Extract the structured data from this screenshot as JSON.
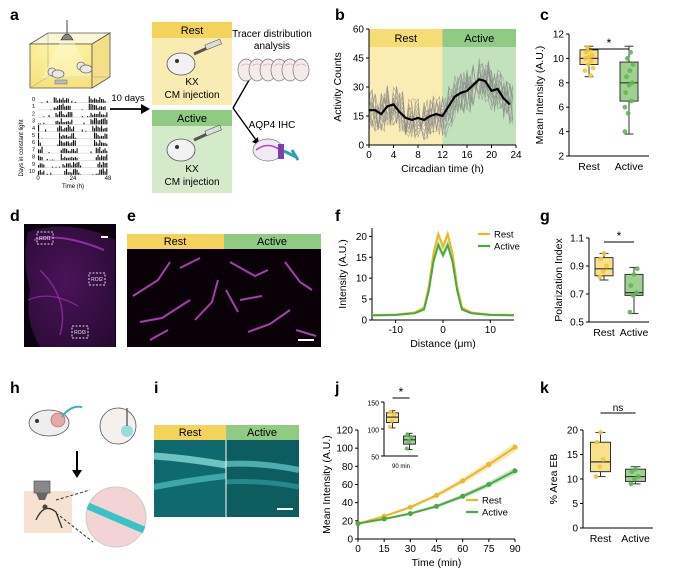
{
  "panels": {
    "a": "a",
    "b": "b",
    "c": "c",
    "d": "d",
    "e": "e",
    "f": "f",
    "g": "g",
    "h": "h",
    "i": "i",
    "j": "j",
    "k": "k"
  },
  "panel_a": {
    "arrow_label": "10 days",
    "rest_label": "Rest",
    "active_label": "Active",
    "kx": "KX",
    "cm_injection": "CM injection",
    "tracer_line1": "Tracer distribution",
    "tracer_line2": "analysis",
    "aqp4": "AQP4 IHC",
    "actogram_ylabel": "Days in constant light",
    "actogram_xlabel": "Time (h)",
    "actogram_days": [
      "0",
      "1",
      "2",
      "3",
      "4",
      "5",
      "6",
      "7",
      "8",
      "9",
      "10"
    ],
    "actogram_xticks": [
      "0",
      "24",
      "48"
    ]
  },
  "panel_d": {
    "roi1": "ROI1",
    "roi2": "ROI2",
    "roi3": "ROI3"
  },
  "panel_e": {
    "rest_label": "Rest",
    "active_label": "Active"
  },
  "panel_i": {
    "rest_label": "Rest",
    "active_label": "Active"
  },
  "chart_data": [
    {
      "id": "b",
      "type": "line",
      "title": "",
      "xlabel": "Circadian time  (h)",
      "ylabel": "Activity Counts",
      "xlim": [
        0,
        24
      ],
      "ylim": [
        0,
        60
      ],
      "xticks": [
        0,
        4,
        8,
        12,
        16,
        20,
        24
      ],
      "yticks": [
        0,
        15,
        30,
        45,
        60
      ],
      "shaded_regions": [
        {
          "label": "Rest",
          "x": [
            0,
            12
          ],
          "color": "#f6dc74"
        },
        {
          "label": "Active",
          "x": [
            12,
            24
          ],
          "color": "#8fcb83"
        }
      ],
      "series": [
        {
          "name": "mean",
          "x": [
            0,
            1,
            2,
            3,
            4,
            5,
            6,
            7,
            8,
            9,
            10,
            11,
            12,
            13,
            14,
            15,
            16,
            17,
            18,
            19,
            20,
            21,
            22,
            23
          ],
          "y": [
            18,
            18,
            16,
            20,
            21,
            17,
            14,
            13,
            14,
            13,
            15,
            16,
            15,
            20,
            25,
            27,
            28,
            31,
            34,
            33,
            28,
            29,
            24,
            21
          ]
        }
      ],
      "individual_trace_count": 12
    },
    {
      "id": "c",
      "type": "box",
      "title": "",
      "xlabel": "",
      "ylabel": "Mean Intensity (A.U.)",
      "ylim": [
        2,
        12
      ],
      "yticks": [
        2,
        4,
        6,
        8,
        10,
        12
      ],
      "categories": [
        "Rest",
        "Active"
      ],
      "boxes": [
        {
          "q1": 9.5,
          "median": 10.0,
          "q3": 10.7,
          "whisker_low": 8.5,
          "whisker_high": 11.0
        },
        {
          "q1": 6.5,
          "median": 8.0,
          "q3": 9.7,
          "whisker_low": 3.8,
          "whisker_high": 11.0
        }
      ],
      "points": [
        [
          9.0,
          9.5,
          9.8,
          10.0,
          10.1,
          10.3,
          10.5,
          10.7,
          9.2,
          10.9,
          8.6
        ],
        [
          4.0,
          5.5,
          6.5,
          7.2,
          7.8,
          8.0,
          8.5,
          9.0,
          9.5,
          10.0,
          10.5,
          6.0
        ]
      ],
      "significance": "*"
    },
    {
      "id": "f",
      "type": "line",
      "title": "",
      "xlabel": "Distance (μm)",
      "ylabel": "Intensity (A.U.)",
      "xlim": [
        -15,
        15
      ],
      "ylim": [
        0,
        22
      ],
      "xticks": [
        -10,
        0,
        10
      ],
      "yticks": [
        0,
        5,
        10,
        15,
        20
      ],
      "legend": "top-right",
      "series": [
        {
          "name": "Rest",
          "color": "#e8b825",
          "x": [
            -15,
            -10,
            -6,
            -4,
            -3,
            -2,
            -1,
            0,
            1,
            2,
            3,
            4,
            6,
            10,
            15
          ],
          "y": [
            1.2,
            1.3,
            1.8,
            3,
            8,
            16,
            20.5,
            17.5,
            20.5,
            16,
            8,
            3,
            1.8,
            1.3,
            1.2
          ]
        },
        {
          "name": "Active",
          "color": "#4aa840",
          "x": [
            -15,
            -10,
            -6,
            -4,
            -3,
            -2,
            -1,
            0,
            1,
            2,
            3,
            4,
            6,
            10,
            15
          ],
          "y": [
            1.1,
            1.2,
            1.6,
            2.5,
            7,
            14,
            18,
            15.5,
            18,
            14,
            7,
            2.5,
            1.6,
            1.2,
            1.1
          ]
        }
      ]
    },
    {
      "id": "g",
      "type": "box",
      "title": "",
      "xlabel": "",
      "ylabel": "Polarization Index",
      "ylim": [
        0.5,
        1.1
      ],
      "yticks": [
        0.5,
        0.7,
        0.9,
        1.1
      ],
      "categories": [
        "Rest",
        "Active"
      ],
      "boxes": [
        {
          "q1": 0.83,
          "median": 0.88,
          "q3": 0.96,
          "whisker_low": 0.8,
          "whisker_high": 0.99
        },
        {
          "q1": 0.69,
          "median": 0.71,
          "q3": 0.84,
          "whisker_low": 0.56,
          "whisker_high": 0.89
        }
      ],
      "points": [
        [
          0.82,
          0.86,
          0.9,
          0.95,
          0.99
        ],
        [
          0.57,
          0.69,
          0.71,
          0.76,
          0.84,
          0.88
        ]
      ],
      "significance": "*"
    },
    {
      "id": "j",
      "type": "line",
      "title": "",
      "xlabel": "Time (min)",
      "ylabel": "Mean Intensity (A.U.)",
      "xlim": [
        0,
        90
      ],
      "ylim": [
        0,
        120
      ],
      "xticks": [
        0,
        15,
        30,
        45,
        60,
        75,
        90
      ],
      "yticks": [
        0,
        20,
        40,
        60,
        80,
        100,
        120
      ],
      "legend": "bottom-right",
      "series": [
        {
          "name": "Rest",
          "color": "#e8b825",
          "x": [
            0,
            15,
            30,
            45,
            60,
            75,
            90
          ],
          "y": [
            17,
            25,
            35,
            48,
            64,
            82,
            101
          ]
        },
        {
          "name": "Active",
          "color": "#4aa840",
          "x": [
            0,
            15,
            30,
            45,
            60,
            75,
            90
          ],
          "y": [
            17,
            22,
            28,
            36,
            47,
            60,
            75
          ]
        }
      ],
      "inset": {
        "type": "box",
        "xlabel": "90 min",
        "ylim": [
          50,
          150
        ],
        "yticks": [
          50,
          100,
          150
        ],
        "categories": [
          "Rest",
          "Active"
        ],
        "boxes": [
          {
            "q1": 112,
            "median": 122,
            "q3": 130,
            "whisker_low": 102,
            "whisker_high": 134
          },
          {
            "q1": 72,
            "median": 80,
            "q3": 87,
            "whisker_low": 62,
            "whisker_high": 92
          }
        ],
        "points": [
          [
            104,
            115,
            128,
            132
          ],
          [
            64,
            78,
            85,
            90
          ]
        ],
        "significance": "*"
      }
    },
    {
      "id": "k",
      "type": "box",
      "title": "",
      "xlabel": "",
      "ylabel": "% Area EB",
      "ylim": [
        0,
        20
      ],
      "yticks": [
        0,
        5,
        10,
        15,
        20
      ],
      "categories": [
        "Rest",
        "Active"
      ],
      "boxes": [
        {
          "q1": 11.5,
          "median": 13.5,
          "q3": 17.5,
          "whisker_low": 10.5,
          "whisker_high": 19.5
        },
        {
          "q1": 9.5,
          "median": 10.5,
          "q3": 12.0,
          "whisker_low": 9.0,
          "whisker_high": 12.5
        }
      ],
      "points": [
        [
          10.5,
          12.5,
          14.0,
          17.5,
          19.5
        ],
        [
          9.0,
          10.0,
          10.5,
          11.5,
          12.0
        ]
      ],
      "significance": "ns"
    }
  ],
  "colors": {
    "rest": "#f0c63c",
    "rest_light": "#f8e18a",
    "active": "#5fb656",
    "active_light": "#9fd08f",
    "cyan": "#31c3c4",
    "magenta": "#c04ccb"
  }
}
